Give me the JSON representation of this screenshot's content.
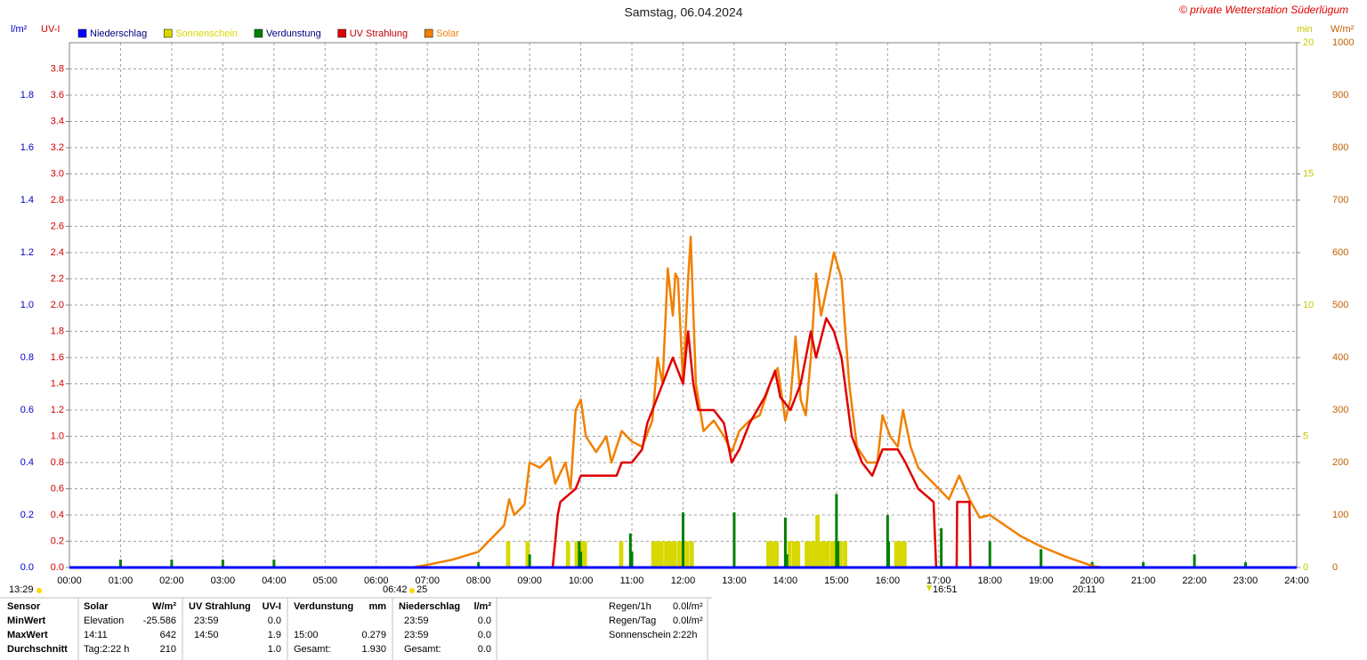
{
  "chart_data": {
    "type": "line",
    "title": "Samstag, 06.04.2024",
    "credit": "© private Wetterstation Süderlügum",
    "axes": [
      {
        "label": "l/m²",
        "color": "#0000c8",
        "lim": [
          0,
          2
        ],
        "ticks": [
          {
            "value": 0,
            "label": "0.0"
          },
          0.2,
          0.4,
          0.6,
          0.8,
          {
            "value": 1,
            "label": "1.0"
          },
          1.2,
          1.4,
          1.6,
          1.8
        ]
      },
      {
        "label": "UV-I",
        "color": "#d00000",
        "lim": [
          0,
          4
        ],
        "ticks": [
          {
            "value": 0,
            "label": "0.0"
          },
          0.2,
          0.4,
          0.6,
          0.8,
          {
            "value": 1,
            "label": "1.0"
          },
          1.2,
          1.4,
          1.6,
          1.8,
          {
            "value": 2,
            "label": "2.0"
          },
          2.2,
          2.4,
          2.6,
          2.8,
          {
            "value": 3,
            "label": "3.0"
          },
          3.2,
          3.4,
          3.6,
          3.8
        ]
      },
      {
        "label": "min",
        "color": "#c8c800",
        "lim": [
          0,
          20
        ],
        "ticks": [
          0,
          5,
          10,
          15,
          20
        ]
      },
      {
        "label": "W/m²",
        "color": "#c06000",
        "lim": [
          0,
          1000
        ],
        "ticks": [
          0,
          100,
          200,
          300,
          400,
          500,
          600,
          700,
          800,
          900,
          1000
        ]
      }
    ],
    "xlim": [
      0,
      24
    ],
    "xticks": [
      {
        "value": 0,
        "label": "00:00"
      },
      {
        "value": 1,
        "label": "01:00"
      },
      {
        "value": 2,
        "label": "02:00"
      },
      {
        "value": 3,
        "label": "03:00"
      },
      {
        "value": 4,
        "label": "04:00"
      },
      {
        "value": 5,
        "label": "05:00"
      },
      {
        "value": 6,
        "label": "06:00"
      },
      {
        "value": 7,
        "label": "07:00"
      },
      {
        "value": 8,
        "label": "08:00"
      },
      {
        "value": 9,
        "label": "09:00"
      },
      {
        "value": 10,
        "label": "10:00"
      },
      {
        "value": 11,
        "label": "11:00"
      },
      {
        "value": 12,
        "label": "12:00"
      },
      {
        "value": 13,
        "label": "13:00"
      },
      {
        "value": 14,
        "label": "14:00"
      },
      {
        "value": 15,
        "label": "15:00"
      },
      {
        "value": 16,
        "label": "16:00"
      },
      {
        "value": 17,
        "label": "17:00"
      },
      {
        "value": 18,
        "label": "18:00"
      },
      {
        "value": 19,
        "label": "19:00"
      },
      {
        "value": 20,
        "label": "20:00"
      },
      {
        "value": 21,
        "label": "21:00"
      },
      {
        "value": 22,
        "label": "22:00"
      },
      {
        "value": 23,
        "label": "23:00"
      },
      {
        "value": 24,
        "label": "24:00"
      }
    ],
    "grid": true,
    "series": [
      {
        "name": "Niederschlag",
        "color": "#0000ff",
        "legend_color": "#000080",
        "axis": 0,
        "kind": "line",
        "x": [
          0,
          24
        ],
        "values": [
          0,
          0
        ]
      },
      {
        "name": "Sonnenschein",
        "color": "#d8d800",
        "legend_color": "#d8d800",
        "axis": 2,
        "kind": "bar",
        "x": [
          8.58,
          8.96,
          9.75,
          9.92,
          10.0,
          10.08,
          10.79,
          11.42,
          11.5,
          11.58,
          11.67,
          11.75,
          11.83,
          11.92,
          12.0,
          12.08,
          12.17,
          13.67,
          13.75,
          13.83,
          14.08,
          14.17,
          14.25,
          14.42,
          14.5,
          14.58,
          14.63,
          14.67,
          14.75,
          14.83,
          14.92,
          15.0,
          15.08,
          15.17,
          16.17,
          16.25,
          16.33
        ],
        "values": [
          1,
          1,
          1,
          1,
          1,
          1,
          1,
          1,
          1,
          1,
          1,
          1,
          1,
          1,
          1,
          1,
          1,
          1,
          1,
          1,
          1,
          1,
          1,
          1,
          1,
          1,
          2,
          1,
          1,
          1,
          1,
          1,
          1,
          1,
          1,
          1,
          1
        ]
      },
      {
        "name": "Verdunstung",
        "color": "#008000",
        "legend_color": "#000080",
        "axis": 0,
        "kind": "spike",
        "x": [
          1,
          2,
          3,
          4,
          8,
          9,
          9.97,
          10,
          10.97,
          11,
          12,
          13,
          14,
          14.03,
          15,
          15.03,
          16,
          16.02,
          17.05,
          18,
          19,
          20,
          21,
          22,
          23
        ],
        "values": [
          0.03,
          0.03,
          0.03,
          0.03,
          0.02,
          0.05,
          0.1,
          0.06,
          0.13,
          0.06,
          0.21,
          0.21,
          0.19,
          0.05,
          0.28,
          0.1,
          0.2,
          0.1,
          0.15,
          0.1,
          0.07,
          0.02,
          0.02,
          0.05,
          0.02
        ]
      },
      {
        "name": "UV Strahlung",
        "color": "#e00000",
        "legend_color": "#c00000",
        "axis": 1,
        "kind": "line",
        "x": [
          9.45,
          9.5,
          9.55,
          9.6,
          9.9,
          10.0,
          10.7,
          10.8,
          11.0,
          11.2,
          11.3,
          11.5,
          11.8,
          12.0,
          12.1,
          12.2,
          12.3,
          12.6,
          12.8,
          12.95,
          13.1,
          13.3,
          13.6,
          13.8,
          13.9,
          14.1,
          14.3,
          14.5,
          14.6,
          14.8,
          14.95,
          15.1,
          15.3,
          15.5,
          15.7,
          15.9,
          16.2,
          16.35,
          16.6,
          16.9,
          16.95,
          null,
          17.35,
          17.36,
          17.6,
          17.62
        ],
        "values": [
          0,
          0.2,
          0.4,
          0.5,
          0.6,
          0.7,
          0.7,
          0.8,
          0.8,
          0.9,
          1.1,
          1.3,
          1.6,
          1.4,
          1.8,
          1.4,
          1.2,
          1.2,
          1.1,
          0.8,
          0.9,
          1.1,
          1.3,
          1.5,
          1.3,
          1.2,
          1.4,
          1.8,
          1.6,
          1.9,
          1.8,
          1.6,
          1.0,
          0.8,
          0.7,
          0.9,
          0.9,
          0.8,
          0.6,
          0.5,
          0,
          null,
          0,
          0.5,
          0.5,
          0
        ]
      },
      {
        "name": "Solar",
        "color": "#f08000",
        "legend_color": "#f08000",
        "axis": 3,
        "kind": "line",
        "x": [
          6.7,
          7.0,
          7.5,
          8.0,
          8.3,
          8.5,
          8.6,
          8.7,
          8.9,
          9.0,
          9.2,
          9.4,
          9.5,
          9.7,
          9.8,
          9.9,
          10.0,
          10.1,
          10.3,
          10.5,
          10.6,
          10.8,
          11.0,
          11.2,
          11.4,
          11.5,
          11.6,
          11.7,
          11.8,
          11.85,
          11.9,
          12.0,
          12.1,
          12.15,
          12.25,
          12.4,
          12.6,
          12.8,
          12.95,
          13.1,
          13.3,
          13.5,
          13.7,
          13.85,
          14.0,
          14.1,
          14.2,
          14.3,
          14.4,
          14.5,
          14.6,
          14.7,
          14.85,
          14.95,
          15.1,
          15.25,
          15.4,
          15.6,
          15.8,
          15.9,
          16.05,
          16.2,
          16.3,
          16.45,
          16.6,
          16.8,
          17.0,
          17.2,
          17.4,
          17.6,
          17.8,
          18.0,
          18.3,
          18.6,
          19.0,
          19.5,
          20.0,
          20.2
        ],
        "values": [
          0,
          5,
          15,
          30,
          60,
          80,
          130,
          100,
          120,
          200,
          190,
          210,
          160,
          200,
          150,
          300,
          320,
          250,
          220,
          250,
          200,
          260,
          240,
          230,
          280,
          400,
          350,
          570,
          480,
          560,
          550,
          350,
          550,
          630,
          350,
          260,
          280,
          250,
          220,
          260,
          280,
          290,
          350,
          380,
          280,
          320,
          440,
          320,
          290,
          400,
          560,
          480,
          550,
          600,
          550,
          350,
          230,
          200,
          200,
          290,
          250,
          230,
          300,
          230,
          190,
          170,
          150,
          130,
          175,
          130,
          95,
          100,
          80,
          60,
          40,
          20,
          3,
          0
        ]
      }
    ],
    "annotations": [
      "13:29",
      "06:42",
      "25",
      "16:51",
      "20:11"
    ],
    "table": {
      "rows": [
        [
          "Sensor",
          "Solar",
          "W/m²",
          "UV Strahlung",
          "UV-I",
          "Verdunstung",
          "mm",
          "Niederschlag",
          "l/m²"
        ],
        [
          "MinWert",
          "Elevation",
          "-25.586",
          "23:59",
          "0.0",
          null,
          null,
          "23:59",
          "0.0"
        ],
        [
          "MaxWert",
          "14:11",
          "642",
          "14:50",
          "1.9",
          "15:00",
          "0.279",
          "23:59",
          "0.0"
        ],
        [
          "Durchschnitt",
          "Tag:2:22 h",
          "210",
          null,
          "1.0",
          "Gesamt:",
          "1.930",
          "Gesamt:",
          "0.0"
        ]
      ],
      "summary": [
        [
          "Regen/1h",
          "0.0l/m²"
        ],
        [
          "Regen/Tag",
          "0.0l/m²"
        ],
        [
          "Sonnenschein",
          "2:22h"
        ]
      ]
    }
  }
}
